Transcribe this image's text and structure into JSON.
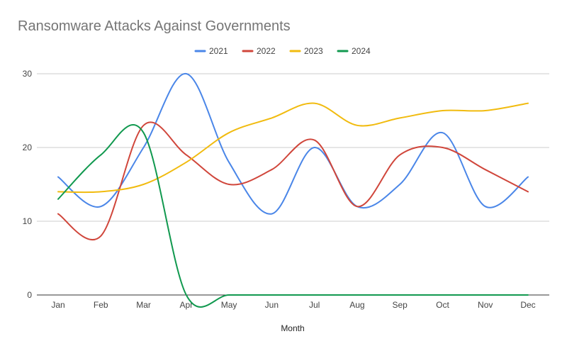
{
  "chart_data": {
    "type": "line",
    "title": "Ransomware Attacks Against Governments",
    "xlabel": "Month",
    "ylabel": "",
    "categories": [
      "Jan",
      "Feb",
      "Mar",
      "Apr",
      "May",
      "Jun",
      "Jul",
      "Aug",
      "Sep",
      "Oct",
      "Nov",
      "Dec"
    ],
    "ylim": [
      0,
      30
    ],
    "yticks": [
      "0",
      "10",
      "20",
      "30"
    ],
    "grid": true,
    "legend_position": "top",
    "smooth": true,
    "series": [
      {
        "name": "2021",
        "color": "#4a86e8",
        "values": [
          16,
          12,
          20,
          30,
          18,
          11,
          20,
          12,
          15,
          22,
          12,
          16
        ]
      },
      {
        "name": "2022",
        "color": "#d0463b",
        "values": [
          11,
          8,
          23,
          19,
          15,
          17,
          21,
          12,
          19,
          20,
          17,
          14
        ]
      },
      {
        "name": "2023",
        "color": "#f1bb0f",
        "values": [
          14,
          14,
          15,
          18,
          22,
          24,
          26,
          23,
          24,
          25,
          25,
          26
        ]
      },
      {
        "name": "2024",
        "color": "#11994f",
        "values": [
          13,
          19,
          22,
          0,
          0,
          0,
          0,
          0,
          0,
          0,
          0,
          0
        ]
      }
    ]
  }
}
